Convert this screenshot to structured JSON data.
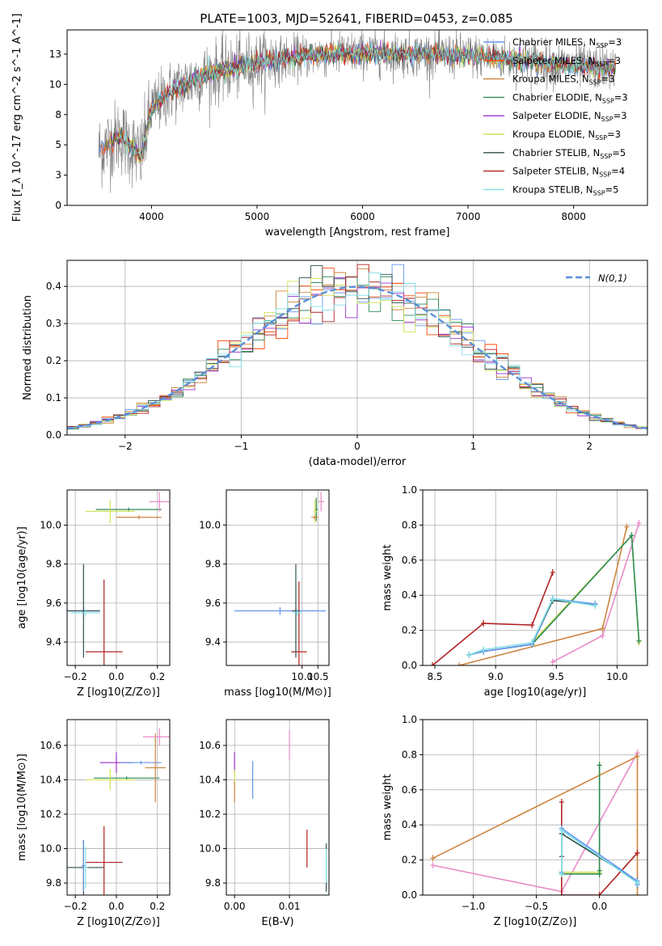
{
  "title": "PLATE=1003, MJD=52641, FIBERID=0453, z=0.085",
  "models": [
    {
      "name": "Chabrier MILES",
      "nssp": "3",
      "color": "#6495ed"
    },
    {
      "name": "Salpeter MILES",
      "nssp": "3",
      "color": "#ff4500"
    },
    {
      "name": "Kroupa MILES",
      "nssp": "3",
      "color": "#cd853f"
    },
    {
      "name": "Chabrier ELODIE",
      "nssp": "3",
      "color": "#2e8b57"
    },
    {
      "name": "Salpeter ELODIE",
      "nssp": "3",
      "color": "#9932cc"
    },
    {
      "name": "Kroupa ELODIE",
      "nssp": "3",
      "color": "#d4e157"
    },
    {
      "name": "Chabrier STELIB",
      "nssp": "5",
      "color": "#2f4f4f"
    },
    {
      "name": "Salpeter STELIB",
      "nssp": "4",
      "color": "#b22222"
    },
    {
      "name": "Kroupa STELIB",
      "nssp": "5",
      "color": "#80dfe8"
    }
  ],
  "data_color": "#808080",
  "gaussian_color": "#5b8fd9",
  "gaussian_label": "N(0,1)",
  "chart_data": [
    {
      "id": "spectrum",
      "type": "line",
      "xlabel": "wavelength [Angstrom, rest frame]",
      "ylabel": "Flux [f_λ 10^-17 erg cm^-2 s^-1 A^-1]",
      "xlim": [
        3200,
        8700
      ],
      "ylim": [
        0,
        14.5
      ],
      "xticks": [
        4000,
        5000,
        6000,
        7000,
        8000
      ],
      "yticks": [
        0.0,
        2.5,
        5.0,
        7.5,
        10.0,
        12.5
      ],
      "continuum": {
        "wavelength": [
          3500,
          3700,
          3900,
          4000,
          4200,
          4500,
          5000,
          5500,
          6000,
          6500,
          7000,
          7500,
          8000,
          8400
        ],
        "flux": [
          4.5,
          5.8,
          4.0,
          8.0,
          9.5,
          10.8,
          11.8,
          12.4,
          12.6,
          12.5,
          12.4,
          12.0,
          11.5,
          11.3
        ]
      },
      "noise_amplitude": 1.0
    },
    {
      "id": "residuals",
      "type": "step",
      "xlabel": "(data-model)/error",
      "ylabel": "Normed distribution",
      "xlim": [
        -2.5,
        2.5
      ],
      "ylim": [
        0,
        0.47
      ],
      "xticks": [
        -2,
        -1,
        0,
        1,
        2
      ],
      "yticks": [
        0.0,
        0.1,
        0.2,
        0.3,
        0.4
      ],
      "bin_width": 0.1
    },
    {
      "id": "age-vs-Z",
      "type": "errorbar",
      "xlabel": "Z [log10(Z/Z⊙)]",
      "ylabel": "age [log10(age/yr)]",
      "xlim": [
        -0.24,
        0.26
      ],
      "ylim": [
        9.28,
        10.18
      ],
      "xticks": [
        -0.2,
        0.0,
        0.2
      ],
      "yticks": [
        9.4,
        9.6,
        9.8,
        10.0
      ],
      "points": [
        {
          "x": -0.16,
          "y": 9.56,
          "xerr": 0.08,
          "yerr": 0.02,
          "color": "#6495ed"
        },
        {
          "x": -0.06,
          "y": 9.35,
          "xerr": 0.09,
          "yerr": 0.37,
          "color": "#b22222"
        },
        {
          "x": -0.16,
          "y": 9.56,
          "xerr": 0.08,
          "yerr": 0.24,
          "color": "#2f4f4f"
        },
        {
          "x": -0.15,
          "y": 9.55,
          "xerr": 0.07,
          "yerr": 0.02,
          "color": "#80dfe8"
        },
        {
          "x": 0.06,
          "y": 10.08,
          "xerr": 0.16,
          "yerr": 0.01,
          "color": "#2e8b57"
        },
        {
          "x": -0.03,
          "y": 10.07,
          "xerr": 0.12,
          "yerr": 0.06,
          "color": "#d4e157"
        },
        {
          "x": 0.11,
          "y": 10.04,
          "xerr": 0.11,
          "yerr": 0.01,
          "color": "#cd853f"
        },
        {
          "x": 0.21,
          "y": 10.12,
          "xerr": 0.05,
          "yerr": 0.05,
          "color": "#e88ac8"
        }
      ]
    },
    {
      "id": "age-vs-mass",
      "type": "errorbar",
      "xlabel": "mass [log10(M/M⊙)]",
      "ylabel": "",
      "xlim": [
        7.6,
        10.85
      ],
      "ylim": [
        9.28,
        10.18
      ],
      "xticks": [
        10.0,
        10.5
      ],
      "yticks": [
        9.4,
        9.6,
        9.8,
        10.0
      ],
      "points": [
        {
          "x": 9.3,
          "y": 9.56,
          "xerr": 1.45,
          "yerr": 0.02,
          "color": "#6495ed"
        },
        {
          "x": 9.9,
          "y": 9.35,
          "xerr": 0.25,
          "yerr": 0.36,
          "color": "#b22222"
        },
        {
          "x": 9.8,
          "y": 9.56,
          "xerr": 0.12,
          "yerr": 0.24,
          "color": "#2f4f4f"
        },
        {
          "x": 9.85,
          "y": 9.55,
          "xerr": 0.15,
          "yerr": 0.02,
          "color": "#80dfe8"
        },
        {
          "x": 10.45,
          "y": 10.08,
          "xerr": 0.05,
          "yerr": 0.06,
          "color": "#2e8b57"
        },
        {
          "x": 10.41,
          "y": 10.07,
          "xerr": 0.05,
          "yerr": 0.06,
          "color": "#d4e157"
        },
        {
          "x": 10.4,
          "y": 10.04,
          "xerr": 0.11,
          "yerr": 0.01,
          "color": "#cd853f"
        },
        {
          "x": 10.6,
          "y": 10.12,
          "xerr": 0.1,
          "yerr": 0.05,
          "color": "#e88ac8"
        }
      ]
    },
    {
      "id": "weight-vs-age",
      "type": "line",
      "xlabel": "age [log10(age/yr)]",
      "ylabel": "mass weight",
      "xlim": [
        8.4,
        10.25
      ],
      "ylim": [
        0,
        1.0
      ],
      "xticks": [
        8.5,
        9.0,
        9.5,
        10.0
      ],
      "yticks": [
        0.0,
        0.2,
        0.4,
        0.6,
        0.8,
        1.0
      ],
      "series": [
        {
          "color": "#b22222",
          "x": [
            8.48,
            8.9,
            9.3,
            9.47
          ],
          "y": [
            0.0,
            0.24,
            0.23,
            0.53
          ]
        },
        {
          "color": "#e88ac8",
          "x": [
            9.47,
            9.88,
            10.18
          ],
          "y": [
            0.02,
            0.17,
            0.81
          ]
        },
        {
          "color": "#cd853f",
          "x": [
            8.7,
            9.88,
            10.08
          ],
          "y": [
            0.0,
            0.21,
            0.79
          ]
        },
        {
          "color": "#d4e157",
          "x": [
            9.3,
            10.12,
            10.18
          ],
          "y": [
            0.13,
            0.74,
            0.13
          ]
        },
        {
          "color": "#2e8b57",
          "x": [
            9.3,
            10.12,
            10.18
          ],
          "y": [
            0.12,
            0.74,
            0.14
          ]
        },
        {
          "color": "#2f4f4f",
          "x": [
            8.78,
            8.9,
            9.3,
            9.47,
            9.82
          ],
          "y": [
            0.06,
            0.08,
            0.12,
            0.37,
            0.35
          ]
        },
        {
          "color": "#6495ed",
          "x": [
            8.78,
            8.9,
            9.3,
            9.47,
            9.82
          ],
          "y": [
            0.06,
            0.08,
            0.12,
            0.38,
            0.35
          ]
        },
        {
          "color": "#80dfe8",
          "x": [
            8.78,
            8.9,
            9.3,
            9.47,
            9.82
          ],
          "y": [
            0.06,
            0.09,
            0.13,
            0.38,
            0.34
          ]
        }
      ]
    },
    {
      "id": "mass-vs-Z",
      "type": "errorbar",
      "xlabel": "Z [log10(Z/Z⊙)]",
      "ylabel": "mass [log10(M/M⊙)]",
      "xlim": [
        -0.24,
        0.26
      ],
      "ylim": [
        9.73,
        10.75
      ],
      "xticks": [
        -0.2,
        0.0,
        0.2
      ],
      "yticks": [
        9.8,
        10.0,
        10.2,
        10.4,
        10.6
      ],
      "points": [
        {
          "x": -0.16,
          "y": 9.89,
          "xerr": 0.1,
          "yerr": 0.16,
          "color": "#2f4f4f"
        },
        {
          "x": -0.16,
          "y": 9.9,
          "xerr": 0.01,
          "yerr": 0.15,
          "color": "#6495ed"
        },
        {
          "x": -0.06,
          "y": 9.92,
          "xerr": 0.09,
          "yerr": 0.21,
          "color": "#b22222"
        },
        {
          "x": -0.15,
          "y": 9.89,
          "xerr": 0.01,
          "yerr": 0.12,
          "color": "#80dfe8"
        },
        {
          "x": 0.05,
          "y": 10.41,
          "xerr": 0.16,
          "yerr": 0.01,
          "color": "#2e8b57"
        },
        {
          "x": -0.03,
          "y": 10.4,
          "xerr": 0.12,
          "yerr": 0.06,
          "color": "#d4e157"
        },
        {
          "x": 0.0,
          "y": 10.5,
          "xerr": 0.08,
          "yerr": 0.06,
          "color": "#9932cc"
        },
        {
          "x": 0.12,
          "y": 10.5,
          "xerr": 0.1,
          "yerr": 0.01,
          "color": "#6495ed"
        },
        {
          "x": 0.19,
          "y": 10.47,
          "xerr": 0.05,
          "yerr": 0.2,
          "color": "#cd853f"
        },
        {
          "x": 0.21,
          "y": 10.65,
          "xerr": 0.08,
          "yerr": 0.05,
          "color": "#e88ac8"
        }
      ]
    },
    {
      "id": "mass-vs-ebv",
      "type": "errorbar",
      "xlabel": "E(B-V)",
      "ylabel": "",
      "xlim": [
        -0.0015,
        0.0172
      ],
      "ylim": [
        9.73,
        10.75
      ],
      "xticks": [
        0.0,
        0.01
      ],
      "yticks": [
        9.8,
        10.0,
        10.2,
        10.4,
        10.6
      ],
      "points": [
        {
          "x": 0.0,
          "y": 10.5,
          "xerr": 0,
          "yerr": 0.06,
          "color": "#9932cc"
        },
        {
          "x": 0.0,
          "y": 10.4,
          "xerr": 0,
          "yerr": 0.06,
          "color": "#d4e157"
        },
        {
          "x": 0.0,
          "y": 10.33,
          "xerr": 0,
          "yerr": 0.06,
          "color": "#cd853f"
        },
        {
          "x": 0.0033,
          "y": 10.4,
          "xerr": 0,
          "yerr": 0.11,
          "color": "#6495ed"
        },
        {
          "x": 0.01,
          "y": 10.6,
          "xerr": 0,
          "yerr": 0.09,
          "color": "#e88ac8"
        },
        {
          "x": 0.0132,
          "y": 10.0,
          "xerr": 0,
          "yerr": 0.11,
          "color": "#b22222"
        },
        {
          "x": 0.0167,
          "y": 9.89,
          "xerr": 0,
          "yerr": 0.14,
          "color": "#2f4f4f"
        },
        {
          "x": 0.0167,
          "y": 9.9,
          "xerr": 0,
          "yerr": 0.1,
          "color": "#80dfe8"
        }
      ]
    },
    {
      "id": "weight-vs-Z",
      "type": "line",
      "xlabel": "Z [log10(Z/Z⊙)]",
      "ylabel": "mass weight",
      "xlim": [
        -1.4,
        0.38
      ],
      "ylim": [
        0,
        1.0
      ],
      "xticks": [
        -1.0,
        -0.5,
        0.0
      ],
      "yticks": [
        0.0,
        0.2,
        0.4,
        0.6,
        0.8,
        1.0
      ],
      "series": [
        {
          "color": "#e88ac8",
          "x": [
            -1.32,
            -0.3,
            0.3
          ],
          "y": [
            0.17,
            0.02,
            0.81
          ]
        },
        {
          "color": "#cd853f",
          "x": [
            -1.32,
            0.3,
            0.3
          ],
          "y": [
            0.21,
            0.79,
            0.0
          ]
        },
        {
          "color": "#b22222",
          "x": [
            -0.3,
            -0.3,
            0.0,
            0.3
          ],
          "y": [
            0.53,
            0.0,
            0.0,
            0.24
          ]
        },
        {
          "color": "#d4e157",
          "x": [
            -0.3,
            0.0,
            0.0,
            0.0
          ],
          "y": [
            0.13,
            0.13,
            0.74,
            0.13
          ]
        },
        {
          "color": "#2e8b57",
          "x": [
            -0.3,
            0.0,
            0.0,
            0.0
          ],
          "y": [
            0.12,
            0.12,
            0.74,
            0.14
          ]
        },
        {
          "color": "#2f4f4f",
          "x": [
            -0.3,
            -0.3,
            0.3,
            0.3
          ],
          "y": [
            0.22,
            0.35,
            0.08,
            0.06
          ]
        },
        {
          "color": "#6495ed",
          "x": [
            -0.3,
            -0.3,
            0.3,
            0.3
          ],
          "y": [
            0.13,
            0.38,
            0.08,
            0.06
          ]
        },
        {
          "color": "#80dfe8",
          "x": [
            -0.3,
            -0.3,
            0.3,
            0.3
          ],
          "y": [
            0.12,
            0.37,
            0.07,
            0.07
          ]
        }
      ]
    }
  ]
}
